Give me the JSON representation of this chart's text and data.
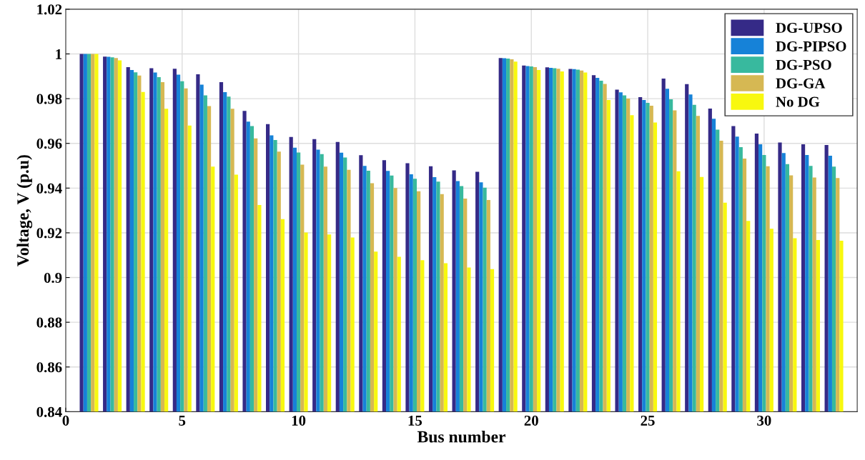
{
  "chart_data": {
    "type": "bar",
    "xlabel": "Bus number",
    "ylabel": "Voltage, V (p.u)",
    "x": [
      1,
      2,
      3,
      4,
      5,
      6,
      7,
      8,
      9,
      10,
      11,
      12,
      13,
      14,
      15,
      16,
      17,
      18,
      19,
      20,
      21,
      22,
      23,
      24,
      25,
      26,
      27,
      28,
      29,
      30,
      31,
      32,
      33
    ],
    "xlim": [
      0,
      34
    ],
    "xticks": [
      0,
      5,
      10,
      15,
      20,
      25,
      30
    ],
    "ylim": [
      0.84,
      1.02
    ],
    "yticks": [
      0.84,
      0.86,
      0.88,
      0.9,
      0.92,
      0.94,
      0.96,
      0.98,
      {
        "value": 1.0,
        "label": "1"
      },
      1.02
    ],
    "grid": true,
    "legend": "top right",
    "series": [
      {
        "name": "DG-UPSO",
        "color": "#352a87",
        "values": [
          1.0,
          0.9988,
          0.9941,
          0.9936,
          0.9934,
          0.9909,
          0.9874,
          0.9745,
          0.9686,
          0.9629,
          0.9619,
          0.9606,
          0.9547,
          0.9525,
          0.9511,
          0.9498,
          0.9479,
          0.9473,
          0.9982,
          0.9948,
          0.994,
          0.9933,
          0.9905,
          0.984,
          0.9807,
          0.989,
          0.9865,
          0.9756,
          0.9677,
          0.9644,
          0.9604,
          0.9596,
          0.9593
        ]
      },
      {
        "name": "DG-PIPSO",
        "color": "#1682d8",
        "values": [
          1.0,
          0.9987,
          0.9928,
          0.9917,
          0.9907,
          0.9863,
          0.9829,
          0.9697,
          0.9636,
          0.9581,
          0.9572,
          0.9558,
          0.9499,
          0.9477,
          0.9462,
          0.9449,
          0.9431,
          0.9426,
          0.9981,
          0.9946,
          0.9938,
          0.9932,
          0.9893,
          0.9828,
          0.9794,
          0.9844,
          0.9819,
          0.971,
          0.963,
          0.9596,
          0.9557,
          0.9548,
          0.9545
        ]
      },
      {
        "name": "DG-PSO",
        "color": "#38b99e",
        "values": [
          1.0,
          0.9985,
          0.9918,
          0.9896,
          0.9878,
          0.9815,
          0.9809,
          0.9677,
          0.9615,
          0.9559,
          0.9552,
          0.9537,
          0.9478,
          0.9456,
          0.9442,
          0.9429,
          0.9409,
          0.9402,
          0.9979,
          0.9944,
          0.9936,
          0.993,
          0.988,
          0.9815,
          0.9781,
          0.9797,
          0.9772,
          0.9661,
          0.9583,
          0.9548,
          0.9507,
          0.9499,
          0.9496
        ]
      },
      {
        "name": "DG-GA",
        "color": "#d6b853",
        "values": [
          1.0,
          0.9982,
          0.9903,
          0.9874,
          0.9846,
          0.9767,
          0.9755,
          0.9622,
          0.9563,
          0.9505,
          0.9496,
          0.9482,
          0.9422,
          0.94,
          0.9386,
          0.9373,
          0.9353,
          0.9347,
          0.9976,
          0.9941,
          0.9934,
          0.9926,
          0.9866,
          0.98,
          0.9768,
          0.9748,
          0.9723,
          0.9612,
          0.9532,
          0.9498,
          0.9457,
          0.9447,
          0.9445
        ]
      },
      {
        "name": "No DG",
        "color": "#f8f80f",
        "values": [
          1.0,
          0.9971,
          0.983,
          0.9755,
          0.968,
          0.9496,
          0.946,
          0.9324,
          0.9261,
          0.9201,
          0.9193,
          0.9179,
          0.9116,
          0.9093,
          0.9078,
          0.9064,
          0.9045,
          0.9038,
          0.9966,
          0.9928,
          0.9922,
          0.9917,
          0.9794,
          0.9726,
          0.9693,
          0.9475,
          0.945,
          0.9335,
          0.9253,
          0.9218,
          0.9176,
          0.9168,
          0.9165
        ]
      }
    ]
  }
}
